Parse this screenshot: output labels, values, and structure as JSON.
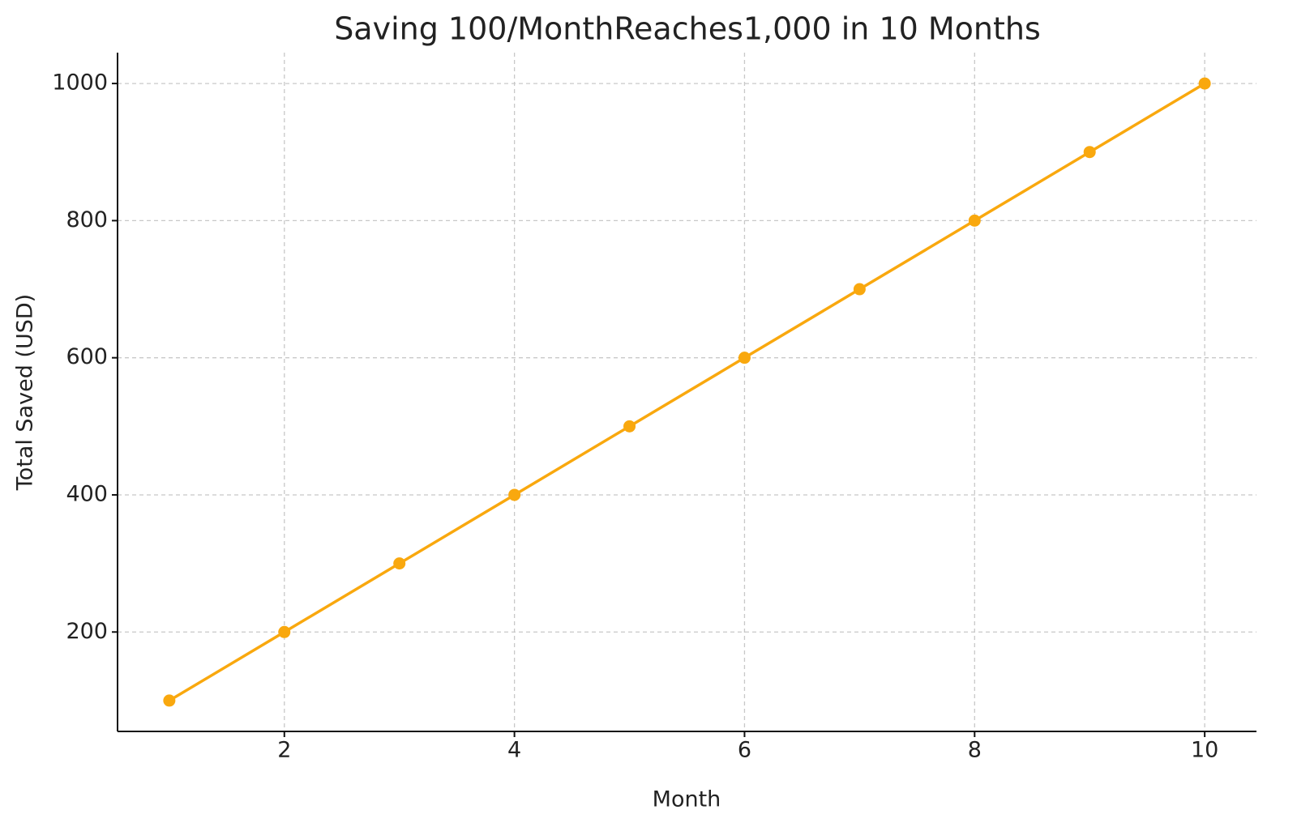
{
  "chart_data": {
    "type": "line",
    "title": "Saving 100/MonthReaches1,000 in 10 Months",
    "x_label": "Month",
    "y_label": "Total Saved (USD)",
    "x": [
      1,
      2,
      3,
      4,
      5,
      6,
      7,
      8,
      9,
      10
    ],
    "values": [
      100,
      200,
      300,
      400,
      500,
      600,
      700,
      800,
      900,
      1000
    ],
    "color": "#f9a80e",
    "xlim": [
      0.55,
      10.45
    ],
    "xticks": [
      2,
      4,
      6,
      8,
      10
    ],
    "ylim": [
      55,
      1045
    ],
    "yticks": [
      200,
      400,
      600,
      800,
      1000
    ],
    "grid": true
  }
}
